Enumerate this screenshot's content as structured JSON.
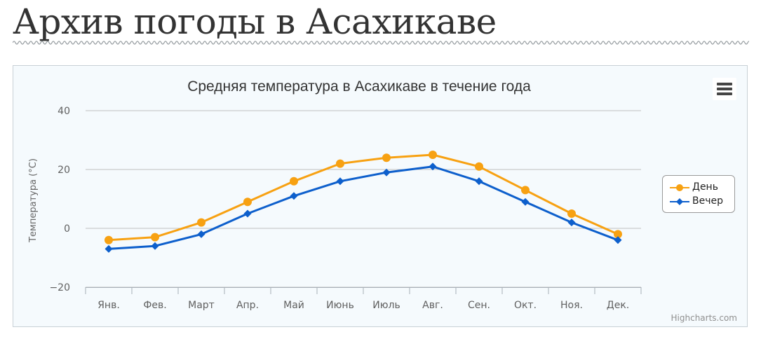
{
  "page": {
    "title": "Архив погоды в Асахикаве"
  },
  "chart_data": {
    "type": "line",
    "title": "Средняя температура в Асахикаве в течение года",
    "xlabel": "",
    "ylabel": "Температура (°C)",
    "categories": [
      "Янв.",
      "Фев.",
      "Март",
      "Апр.",
      "Май",
      "Июнь",
      "Июль",
      "Авг.",
      "Сен.",
      "Окт.",
      "Ноя.",
      "Дек."
    ],
    "ylim": [
      -20,
      40
    ],
    "yticks": [
      -20,
      0,
      20,
      40
    ],
    "ytick_labels": [
      "−20",
      "0",
      "20",
      "40"
    ],
    "grid": true,
    "legend_position": "right",
    "series": [
      {
        "name": "День",
        "color": "#f7a112",
        "marker": "circle",
        "values": [
          -4,
          -3,
          2,
          9,
          16,
          22,
          24,
          25,
          21,
          13,
          5,
          -2
        ]
      },
      {
        "name": "Вечер",
        "color": "#0d5fcc",
        "marker": "diamond",
        "values": [
          -7,
          -6,
          -2,
          5,
          11,
          16,
          19,
          21,
          16,
          9,
          2,
          -4
        ]
      }
    ],
    "credits": "Highcharts.com"
  }
}
